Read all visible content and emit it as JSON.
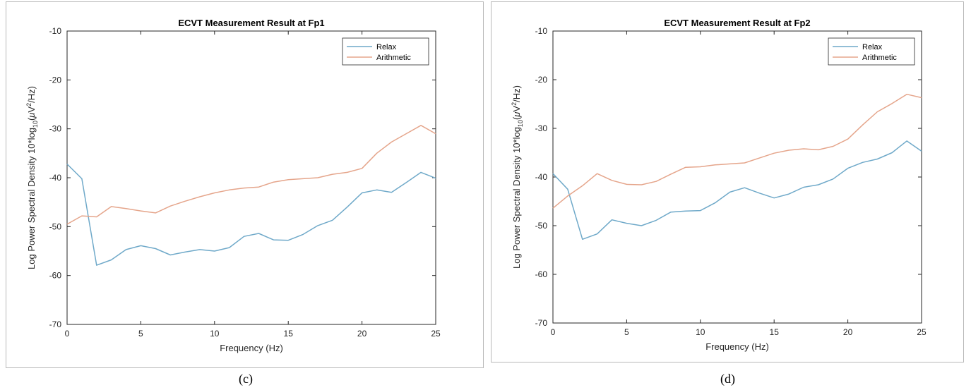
{
  "captions": {
    "left": "(c)",
    "right": "(d)"
  },
  "chart_data": [
    {
      "type": "line",
      "title": "ECVT Measurement Result at Fp1",
      "xlabel": "Frequency (Hz)",
      "ylabel": "Log Power Spectral Density 10*log",
      "ylabel_sub": "10",
      "ylabel_unit_pre": "(",
      "ylabel_mu": "μ",
      "ylabel_v": "V",
      "ylabel_sup": "2",
      "ylabel_unit_post": "/Hz)",
      "xlim": [
        0,
        25
      ],
      "ylim": [
        -70,
        -10
      ],
      "xticks": [
        "0",
        "5",
        "10",
        "15",
        "20",
        "25"
      ],
      "yticks": [
        "-10",
        "-20",
        "-30",
        "-40",
        "-50",
        "-60",
        "-70"
      ],
      "legend_position": "top-right",
      "x": [
        0,
        1,
        2,
        3,
        4,
        5,
        6,
        7,
        8,
        9,
        10,
        11,
        12,
        13,
        14,
        15,
        16,
        17,
        18,
        19,
        20,
        21,
        22,
        23,
        24,
        25
      ],
      "series": [
        {
          "name": "Relax",
          "color": "#6fa9c9",
          "values": [
            -37.2,
            -40.2,
            -57.9,
            -56.8,
            -54.7,
            -53.9,
            -54.5,
            -55.8,
            -55.2,
            -54.7,
            -55.0,
            -54.3,
            -52.0,
            -51.4,
            -52.7,
            -52.8,
            -51.6,
            -49.8,
            -48.7,
            -46.0,
            -43.1,
            -42.5,
            -43.0,
            -41.0,
            -38.9,
            -40.1
          ]
        },
        {
          "name": "Arithmetic",
          "color": "#e5a58b",
          "values": [
            -49.5,
            -47.8,
            -48.0,
            -45.9,
            -46.3,
            -46.8,
            -47.2,
            -45.8,
            -44.8,
            -43.9,
            -43.1,
            -42.5,
            -42.1,
            -41.9,
            -40.9,
            -40.4,
            -40.2,
            -40.0,
            -39.3,
            -38.9,
            -38.1,
            -35.0,
            -32.7,
            -31.0,
            -29.3,
            -31.0
          ]
        }
      ]
    },
    {
      "type": "line",
      "title": "ECVT Measurement Result at Fp2",
      "xlabel": "Frequency (Hz)",
      "ylabel": "Log Power Spectral Density 10*log",
      "ylabel_sub": "10",
      "ylabel_unit_pre": "(",
      "ylabel_mu": "μ",
      "ylabel_v": "V",
      "ylabel_sup": "2",
      "ylabel_unit_post": "/Hz)",
      "xlim": [
        0,
        25
      ],
      "ylim": [
        -70,
        -10
      ],
      "xticks": [
        "0",
        "5",
        "10",
        "15",
        "20",
        "25"
      ],
      "yticks": [
        "-10",
        "-20",
        "-30",
        "-40",
        "-50",
        "-60",
        "-70"
      ],
      "legend_position": "top-right",
      "x": [
        0,
        1,
        2,
        3,
        4,
        5,
        6,
        7,
        8,
        9,
        10,
        11,
        12,
        13,
        14,
        15,
        16,
        17,
        18,
        19,
        20,
        21,
        22,
        23,
        24,
        25
      ],
      "series": [
        {
          "name": "Relax",
          "color": "#6fa9c9",
          "values": [
            -39.3,
            -42.5,
            -52.8,
            -51.7,
            -48.8,
            -49.5,
            -50.0,
            -48.9,
            -47.2,
            -47.0,
            -46.9,
            -45.3,
            -43.1,
            -42.2,
            -43.3,
            -44.3,
            -43.5,
            -42.1,
            -41.6,
            -40.4,
            -38.2,
            -37.0,
            -36.3,
            -35.0,
            -32.6,
            -34.7
          ]
        },
        {
          "name": "Arithmetic",
          "color": "#e5a58b",
          "values": [
            -46.4,
            -43.9,
            -41.8,
            -39.3,
            -40.7,
            -41.5,
            -41.6,
            -40.9,
            -39.4,
            -38.0,
            -37.9,
            -37.5,
            -37.3,
            -37.1,
            -36.1,
            -35.1,
            -34.5,
            -34.2,
            -34.4,
            -33.7,
            -32.2,
            -29.3,
            -26.6,
            -24.9,
            -23.0,
            -23.7
          ]
        }
      ]
    }
  ]
}
